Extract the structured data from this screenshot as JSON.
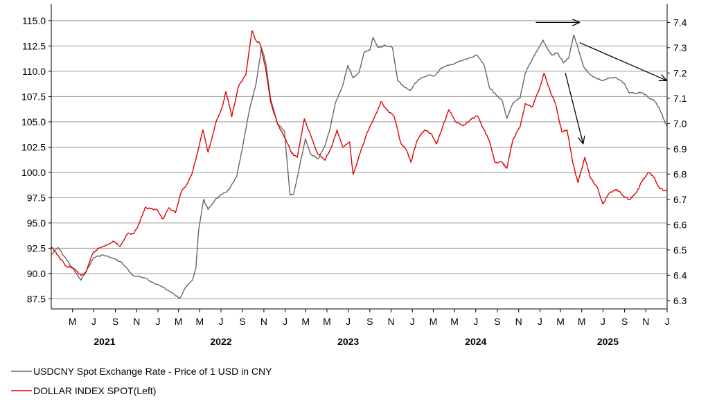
{
  "chart_data": {
    "type": "line",
    "title": "",
    "grid": true,
    "legend_placement": "bottom-left",
    "left_axis": {
      "label": "",
      "ylim": [
        86.5,
        116.5
      ],
      "ticks": [
        "115.0",
        "112.5",
        "110.0",
        "107.5",
        "105.0",
        "102.5",
        "100.0",
        "97.5",
        "95.0",
        "92.5",
        "90.0",
        "87.5"
      ],
      "tick_values": [
        115.0,
        112.5,
        110.0,
        107.5,
        105.0,
        102.5,
        100.0,
        97.5,
        95.0,
        92.5,
        90.0,
        87.5
      ]
    },
    "right_axis": {
      "label": "",
      "ylim": [
        6.2667,
        7.4667
      ],
      "ticks": [
        "7.4",
        "7.3",
        "7.2",
        "7.1",
        "7.0",
        "6.9",
        "6.8",
        "6.7",
        "6.6",
        "6.5",
        "6.4",
        "6.3"
      ],
      "tick_values": [
        7.4,
        7.3,
        7.2,
        7.1,
        7.0,
        6.9,
        6.8,
        6.7,
        6.6,
        6.5,
        6.4,
        6.3
      ]
    },
    "x_axis": {
      "start": "2021-03-01",
      "end": "2026-01-01",
      "month_ticks": [
        {
          "label": "M",
          "date": "2021-05-01"
        },
        {
          "label": "J",
          "date": "2021-07-01"
        },
        {
          "label": "S",
          "date": "2021-09-01"
        },
        {
          "label": "N",
          "date": "2021-11-01"
        },
        {
          "label": "J",
          "date": "2022-01-01"
        },
        {
          "label": "M",
          "date": "2022-03-01"
        },
        {
          "label": "M",
          "date": "2022-05-01"
        },
        {
          "label": "J",
          "date": "2022-07-01"
        },
        {
          "label": "S",
          "date": "2022-09-01"
        },
        {
          "label": "N",
          "date": "2022-11-01"
        },
        {
          "label": "J",
          "date": "2023-01-01"
        },
        {
          "label": "M",
          "date": "2023-03-01"
        },
        {
          "label": "M",
          "date": "2023-05-01"
        },
        {
          "label": "J",
          "date": "2023-07-01"
        },
        {
          "label": "S",
          "date": "2023-09-01"
        },
        {
          "label": "N",
          "date": "2023-11-01"
        },
        {
          "label": "J",
          "date": "2024-01-01"
        },
        {
          "label": "M",
          "date": "2024-03-01"
        },
        {
          "label": "M",
          "date": "2024-05-01"
        },
        {
          "label": "J",
          "date": "2024-07-01"
        },
        {
          "label": "S",
          "date": "2024-09-01"
        },
        {
          "label": "N",
          "date": "2024-11-01"
        },
        {
          "label": "J",
          "date": "2025-01-01"
        },
        {
          "label": "M",
          "date": "2025-03-01"
        },
        {
          "label": "M",
          "date": "2025-05-01"
        },
        {
          "label": "J",
          "date": "2025-07-01"
        },
        {
          "label": "S",
          "date": "2025-09-01"
        },
        {
          "label": "N",
          "date": "2025-11-01"
        },
        {
          "label": "J",
          "date": "2026-01-01"
        }
      ],
      "year_labels": [
        {
          "label": "2021",
          "date": "2021-08-01"
        },
        {
          "label": "2022",
          "date": "2022-07-01"
        },
        {
          "label": "2023",
          "date": "2023-07-01"
        },
        {
          "label": "2024",
          "date": "2024-07-01"
        },
        {
          "label": "2025",
          "date": "2025-07-15"
        }
      ]
    },
    "series": [
      {
        "name": "USDCNY Spot Exchange Rate - Price of 1 USD in CNY",
        "axis": "right",
        "color": "#666666",
        "points": [
          [
            "2021-03-01",
            6.48
          ],
          [
            "2021-03-20",
            6.51
          ],
          [
            "2021-04-15",
            6.46
          ],
          [
            "2021-05-10",
            6.41
          ],
          [
            "2021-05-25",
            6.38
          ],
          [
            "2021-06-15",
            6.43
          ],
          [
            "2021-07-01",
            6.47
          ],
          [
            "2021-07-25",
            6.48
          ],
          [
            "2021-08-20",
            6.47
          ],
          [
            "2021-09-20",
            6.45
          ],
          [
            "2021-10-20",
            6.4
          ],
          [
            "2021-11-20",
            6.39
          ],
          [
            "2021-12-20",
            6.37
          ],
          [
            "2022-01-20",
            6.35
          ],
          [
            "2022-02-20",
            6.32
          ],
          [
            "2022-03-05",
            6.31
          ],
          [
            "2022-03-20",
            6.35
          ],
          [
            "2022-04-10",
            6.38
          ],
          [
            "2022-04-20",
            6.43
          ],
          [
            "2022-04-28",
            6.58
          ],
          [
            "2022-05-12",
            6.7
          ],
          [
            "2022-05-25",
            6.66
          ],
          [
            "2022-06-15",
            6.7
          ],
          [
            "2022-07-05",
            6.72
          ],
          [
            "2022-07-25",
            6.74
          ],
          [
            "2022-08-15",
            6.79
          ],
          [
            "2022-08-31",
            6.9
          ],
          [
            "2022-09-20",
            7.05
          ],
          [
            "2022-10-10",
            7.16
          ],
          [
            "2022-10-25",
            7.3
          ],
          [
            "2022-11-05",
            7.25
          ],
          [
            "2022-11-20",
            7.1
          ],
          [
            "2022-12-10",
            7.0
          ],
          [
            "2022-12-30",
            6.97
          ],
          [
            "2023-01-15",
            6.72
          ],
          [
            "2023-01-25",
            6.72
          ],
          [
            "2023-02-10",
            6.82
          ],
          [
            "2023-02-28",
            6.94
          ],
          [
            "2023-03-15",
            6.88
          ],
          [
            "2023-04-05",
            6.86
          ],
          [
            "2023-04-25",
            6.91
          ],
          [
            "2023-05-10",
            6.98
          ],
          [
            "2023-05-25",
            7.08
          ],
          [
            "2023-06-15",
            7.15
          ],
          [
            "2023-06-30",
            7.23
          ],
          [
            "2023-07-15",
            7.18
          ],
          [
            "2023-08-01",
            7.2
          ],
          [
            "2023-08-15",
            7.28
          ],
          [
            "2023-09-01",
            7.29
          ],
          [
            "2023-09-10",
            7.34
          ],
          [
            "2023-09-25",
            7.3
          ],
          [
            "2023-10-15",
            7.31
          ],
          [
            "2023-11-05",
            7.3
          ],
          [
            "2023-11-20",
            7.17
          ],
          [
            "2023-12-05",
            7.15
          ],
          [
            "2023-12-25",
            7.13
          ],
          [
            "2024-01-10",
            7.16
          ],
          [
            "2024-01-25",
            7.18
          ],
          [
            "2024-02-15",
            7.19
          ],
          [
            "2024-03-05",
            7.19
          ],
          [
            "2024-03-25",
            7.22
          ],
          [
            "2024-04-15",
            7.23
          ],
          [
            "2024-05-05",
            7.24
          ],
          [
            "2024-05-25",
            7.25
          ],
          [
            "2024-06-15",
            7.26
          ],
          [
            "2024-07-05",
            7.27
          ],
          [
            "2024-07-25",
            7.23
          ],
          [
            "2024-08-10",
            7.14
          ],
          [
            "2024-08-25",
            7.12
          ],
          [
            "2024-09-15",
            7.09
          ],
          [
            "2024-09-28",
            7.02
          ],
          [
            "2024-10-15",
            7.08
          ],
          [
            "2024-11-05",
            7.1
          ],
          [
            "2024-11-20",
            7.2
          ],
          [
            "2024-12-05",
            7.24
          ],
          [
            "2024-12-25",
            7.29
          ],
          [
            "2025-01-10",
            7.33
          ],
          [
            "2025-01-25",
            7.29
          ],
          [
            "2025-02-05",
            7.27
          ],
          [
            "2025-02-20",
            7.28
          ],
          [
            "2025-03-10",
            7.24
          ],
          [
            "2025-03-25",
            7.26
          ],
          [
            "2025-04-08",
            7.35
          ],
          [
            "2025-04-20",
            7.3
          ],
          [
            "2025-05-05",
            7.23
          ],
          [
            "2025-05-20",
            7.2
          ],
          [
            "2025-06-10",
            7.18
          ],
          [
            "2025-06-30",
            7.17
          ],
          [
            "2025-07-20",
            7.18
          ],
          [
            "2025-08-10",
            7.18
          ],
          [
            "2025-08-30",
            7.16
          ],
          [
            "2025-09-15",
            7.12
          ],
          [
            "2025-10-05",
            7.12
          ],
          [
            "2025-10-25",
            7.12
          ],
          [
            "2025-11-10",
            7.1
          ],
          [
            "2025-11-25",
            7.09
          ],
          [
            "2025-12-10",
            7.06
          ],
          [
            "2025-12-31",
            6.99
          ]
        ]
      },
      {
        "name": "DOLLAR INDEX SPOT(Left)",
        "axis": "left",
        "color": "#e00000",
        "points": [
          [
            "2021-03-01",
            92.6
          ],
          [
            "2021-03-20",
            91.8
          ],
          [
            "2021-04-10",
            90.8
          ],
          [
            "2021-05-05",
            90.5
          ],
          [
            "2021-05-25",
            89.8
          ],
          [
            "2021-06-10",
            90.2
          ],
          [
            "2021-06-28",
            92.0
          ],
          [
            "2021-07-15",
            92.5
          ],
          [
            "2021-08-05",
            92.8
          ],
          [
            "2021-08-25",
            93.2
          ],
          [
            "2021-09-15",
            92.7
          ],
          [
            "2021-10-05",
            93.9
          ],
          [
            "2021-10-25",
            94.0
          ],
          [
            "2021-11-10",
            95.1
          ],
          [
            "2021-11-25",
            96.5
          ],
          [
            "2021-12-10",
            96.4
          ],
          [
            "2021-12-30",
            96.3
          ],
          [
            "2022-01-15",
            95.4
          ],
          [
            "2022-02-01",
            96.5
          ],
          [
            "2022-02-20",
            96.0
          ],
          [
            "2022-03-10",
            98.2
          ],
          [
            "2022-03-25",
            98.8
          ],
          [
            "2022-04-10",
            100.0
          ],
          [
            "2022-04-25",
            102.0
          ],
          [
            "2022-05-10",
            104.2
          ],
          [
            "2022-05-25",
            102.0
          ],
          [
            "2022-06-15",
            104.8
          ],
          [
            "2022-07-05",
            106.5
          ],
          [
            "2022-07-15",
            108.0
          ],
          [
            "2022-08-01",
            105.5
          ],
          [
            "2022-08-20",
            108.5
          ],
          [
            "2022-09-10",
            109.6
          ],
          [
            "2022-09-28",
            114.0
          ],
          [
            "2022-10-10",
            113.0
          ],
          [
            "2022-10-20",
            112.8
          ],
          [
            "2022-11-05",
            110.5
          ],
          [
            "2022-11-20",
            107.0
          ],
          [
            "2022-12-10",
            104.8
          ],
          [
            "2022-12-30",
            103.5
          ],
          [
            "2023-01-20",
            101.9
          ],
          [
            "2023-02-05",
            101.5
          ],
          [
            "2023-02-25",
            105.3
          ],
          [
            "2023-03-15",
            103.7
          ],
          [
            "2023-04-05",
            101.8
          ],
          [
            "2023-04-25",
            101.2
          ],
          [
            "2023-05-15",
            102.6
          ],
          [
            "2023-05-30",
            104.2
          ],
          [
            "2023-06-15",
            102.5
          ],
          [
            "2023-07-05",
            103.0
          ],
          [
            "2023-07-15",
            99.8
          ],
          [
            "2023-08-05",
            102.0
          ],
          [
            "2023-08-25",
            104.0
          ],
          [
            "2023-09-15",
            105.5
          ],
          [
            "2023-10-03",
            107.0
          ],
          [
            "2023-10-20",
            106.2
          ],
          [
            "2023-11-10",
            105.5
          ],
          [
            "2023-11-28",
            103.0
          ],
          [
            "2023-12-15",
            102.2
          ],
          [
            "2023-12-28",
            101.0
          ],
          [
            "2024-01-15",
            103.2
          ],
          [
            "2024-02-05",
            104.2
          ],
          [
            "2024-02-25",
            103.8
          ],
          [
            "2024-03-10",
            102.8
          ],
          [
            "2024-03-25",
            104.2
          ],
          [
            "2024-04-15",
            106.2
          ],
          [
            "2024-05-05",
            105.0
          ],
          [
            "2024-05-25",
            104.6
          ],
          [
            "2024-06-15",
            105.2
          ],
          [
            "2024-07-05",
            105.6
          ],
          [
            "2024-07-25",
            104.2
          ],
          [
            "2024-08-10",
            103.0
          ],
          [
            "2024-08-25",
            101.0
          ],
          [
            "2024-09-15",
            101.0
          ],
          [
            "2024-09-28",
            100.4
          ],
          [
            "2024-10-15",
            103.2
          ],
          [
            "2024-11-05",
            104.5
          ],
          [
            "2024-11-20",
            106.8
          ],
          [
            "2024-12-10",
            106.5
          ],
          [
            "2024-12-30",
            108.2
          ],
          [
            "2025-01-13",
            109.8
          ],
          [
            "2025-01-30",
            108.1
          ],
          [
            "2025-02-15",
            106.8
          ],
          [
            "2025-03-05",
            104.0
          ],
          [
            "2025-03-20",
            104.2
          ],
          [
            "2025-04-05",
            101.0
          ],
          [
            "2025-04-20",
            99.0
          ],
          [
            "2025-05-10",
            101.5
          ],
          [
            "2025-05-25",
            99.5
          ],
          [
            "2025-06-15",
            98.5
          ],
          [
            "2025-06-30",
            96.9
          ],
          [
            "2025-07-20",
            98.0
          ],
          [
            "2025-08-10",
            98.3
          ],
          [
            "2025-08-25",
            97.8
          ],
          [
            "2025-09-15",
            97.3
          ],
          [
            "2025-10-05",
            98.0
          ],
          [
            "2025-10-25",
            99.4
          ],
          [
            "2025-11-10",
            100.0
          ],
          [
            "2025-11-25",
            99.5
          ],
          [
            "2025-12-10",
            98.4
          ],
          [
            "2025-12-31",
            98.2
          ]
        ]
      }
    ],
    "annotations": [
      {
        "type": "arrow",
        "from": [
          "2024-12-20",
          7.4
        ],
        "to": [
          "2025-04-25",
          7.4
        ]
      },
      {
        "type": "arrow",
        "from": [
          "2025-04-25",
          7.32
        ],
        "to": [
          "2025-12-31",
          7.17
        ]
      },
      {
        "type": "arrow",
        "from": [
          "2025-03-15",
          7.2
        ],
        "to": [
          "2025-05-05",
          6.92
        ]
      }
    ]
  },
  "legend": {
    "items": [
      {
        "label": "USDCNY Spot Exchange Rate - Price of 1 USD in CNY",
        "color": "#666666"
      },
      {
        "label": "DOLLAR INDEX SPOT(Left)",
        "color": "#e00000"
      }
    ]
  }
}
